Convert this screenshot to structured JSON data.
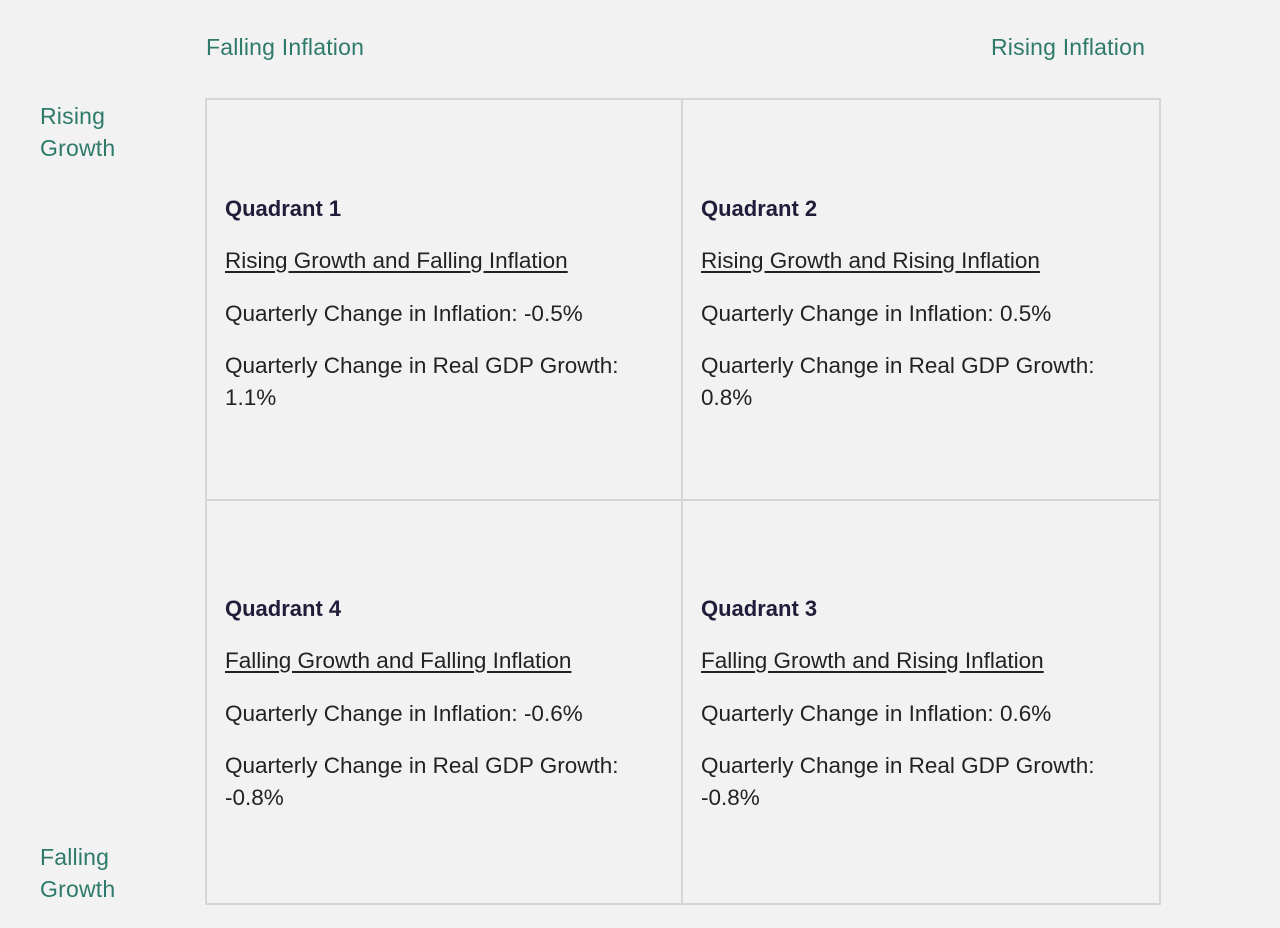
{
  "axes": {
    "top_left": "Falling Inflation",
    "top_right": "Rising Inflation",
    "left_top": [
      "Rising",
      "Growth"
    ],
    "left_bottom": [
      "Falling",
      "Growth"
    ]
  },
  "quadrants": {
    "q1": {
      "title": "Quadrant 1",
      "subtitle": "Rising Growth and Falling Inflation",
      "inflation_label": "Quarterly Change in Inflation:",
      "inflation_value": "-0.5%",
      "gdp_label": "Quarterly Change in Real GDP Growth:",
      "gdp_value": "1.1%"
    },
    "q2": {
      "title": "Quadrant 2",
      "subtitle": "Rising Growth and Rising Inflation",
      "inflation_label": "Quarterly Change in Inflation:",
      "inflation_value": "0.5%",
      "gdp_label": "Quarterly Change in Real GDP Growth:",
      "gdp_value": "0.8%"
    },
    "q4": {
      "title": "Quadrant 4",
      "subtitle": "Falling Growth and Falling Inflation",
      "inflation_label": "Quarterly Change in Inflation:",
      "inflation_value": "-0.6%",
      "gdp_label": "Quarterly Change in Real GDP Growth:",
      "gdp_value": "-0.8%"
    },
    "q3": {
      "title": "Quadrant 3",
      "subtitle": "Falling Growth and Rising Inflation",
      "inflation_label": "Quarterly Change in Inflation:",
      "inflation_value": "0.6%",
      "gdp_label": "Quarterly Change in Real GDP Growth:",
      "gdp_value": "-0.8%"
    }
  },
  "colors": {
    "axis_text": "#2e7a6a",
    "title_text": "#1f1d3a",
    "body_text": "#222222",
    "grid_line": "#d6d6d6",
    "background": "#f2f2f2"
  }
}
